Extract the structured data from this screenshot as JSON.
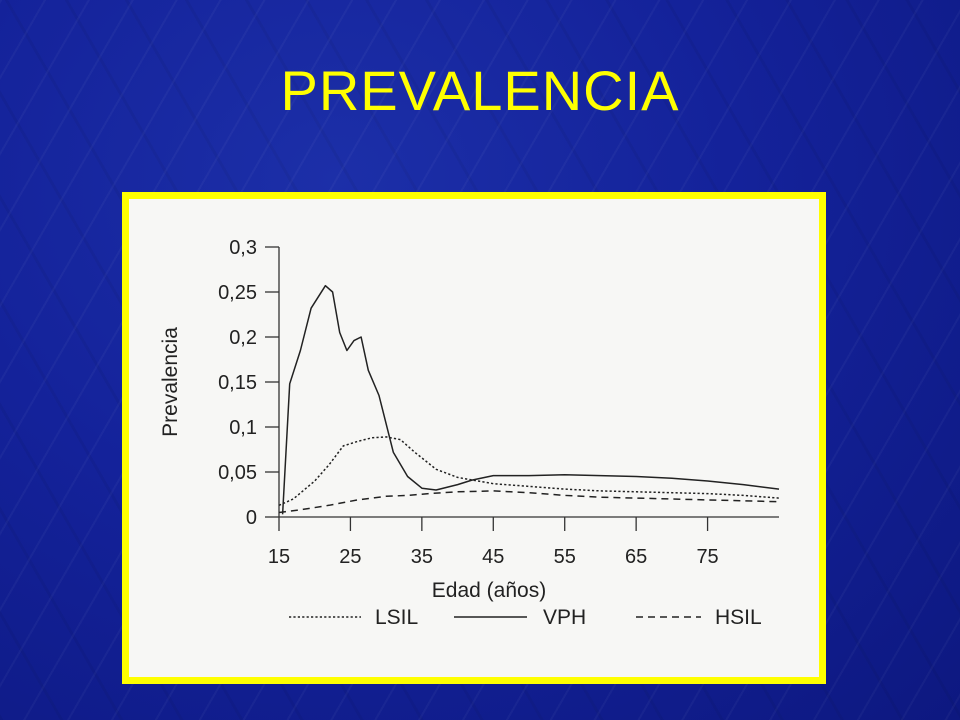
{
  "slide": {
    "title": "PREVALENCIA"
  },
  "chart_data": {
    "type": "line",
    "title": "",
    "xlabel": "Edad (años)",
    "ylabel": "Prevalencia",
    "xlim": [
      15,
      85
    ],
    "ylim": [
      0,
      0.3
    ],
    "x_ticks": [
      "15",
      "25",
      "35",
      "45",
      "55",
      "65",
      "75"
    ],
    "x_tick_values": [
      15,
      25,
      35,
      45,
      55,
      65,
      75
    ],
    "y_ticks": [
      "0",
      "0,05",
      "0,1",
      "0,15",
      "0,2",
      "0,25",
      "0,3"
    ],
    "y_tick_values": [
      0,
      0.05,
      0.1,
      0.15,
      0.2,
      0.25,
      0.3
    ],
    "grid": false,
    "legend_position": "bottom",
    "series": [
      {
        "name": "LSIL",
        "style": "dotted",
        "points": [
          [
            15,
            0.013
          ],
          [
            17,
            0.02
          ],
          [
            20,
            0.04
          ],
          [
            22,
            0.058
          ],
          [
            24,
            0.079
          ],
          [
            26,
            0.084
          ],
          [
            28,
            0.088
          ],
          [
            30,
            0.089
          ],
          [
            32,
            0.086
          ],
          [
            34,
            0.072
          ],
          [
            37,
            0.053
          ],
          [
            40,
            0.044
          ],
          [
            45,
            0.037
          ],
          [
            50,
            0.034
          ],
          [
            55,
            0.031
          ],
          [
            60,
            0.029
          ],
          [
            65,
            0.028
          ],
          [
            70,
            0.027
          ],
          [
            75,
            0.026
          ],
          [
            80,
            0.024
          ],
          [
            85,
            0.021
          ]
        ]
      },
      {
        "name": "VPH",
        "style": "solid",
        "points": [
          [
            15.5,
            0.003
          ],
          [
            16.5,
            0.148
          ],
          [
            18,
            0.185
          ],
          [
            19.5,
            0.232
          ],
          [
            21.5,
            0.257
          ],
          [
            22.5,
            0.25
          ],
          [
            23.5,
            0.205
          ],
          [
            24.5,
            0.185
          ],
          [
            25.5,
            0.196
          ],
          [
            26.5,
            0.2
          ],
          [
            27.5,
            0.163
          ],
          [
            29,
            0.135
          ],
          [
            31,
            0.072
          ],
          [
            33,
            0.045
          ],
          [
            35,
            0.032
          ],
          [
            37,
            0.03
          ],
          [
            40,
            0.036
          ],
          [
            42,
            0.041
          ],
          [
            45,
            0.046
          ],
          [
            50,
            0.046
          ],
          [
            55,
            0.047
          ],
          [
            60,
            0.046
          ],
          [
            65,
            0.045
          ],
          [
            70,
            0.043
          ],
          [
            75,
            0.04
          ],
          [
            80,
            0.036
          ],
          [
            85,
            0.031
          ]
        ]
      },
      {
        "name": "HSIL",
        "style": "dashed",
        "points": [
          [
            15,
            0.005
          ],
          [
            18,
            0.008
          ],
          [
            22,
            0.013
          ],
          [
            26,
            0.019
          ],
          [
            30,
            0.023
          ],
          [
            33,
            0.024
          ],
          [
            36,
            0.026
          ],
          [
            40,
            0.028
          ],
          [
            45,
            0.029
          ],
          [
            50,
            0.027
          ],
          [
            55,
            0.024
          ],
          [
            60,
            0.022
          ],
          [
            65,
            0.021
          ],
          [
            70,
            0.02
          ],
          [
            75,
            0.019
          ],
          [
            80,
            0.018
          ],
          [
            85,
            0.017
          ]
        ]
      }
    ]
  }
}
